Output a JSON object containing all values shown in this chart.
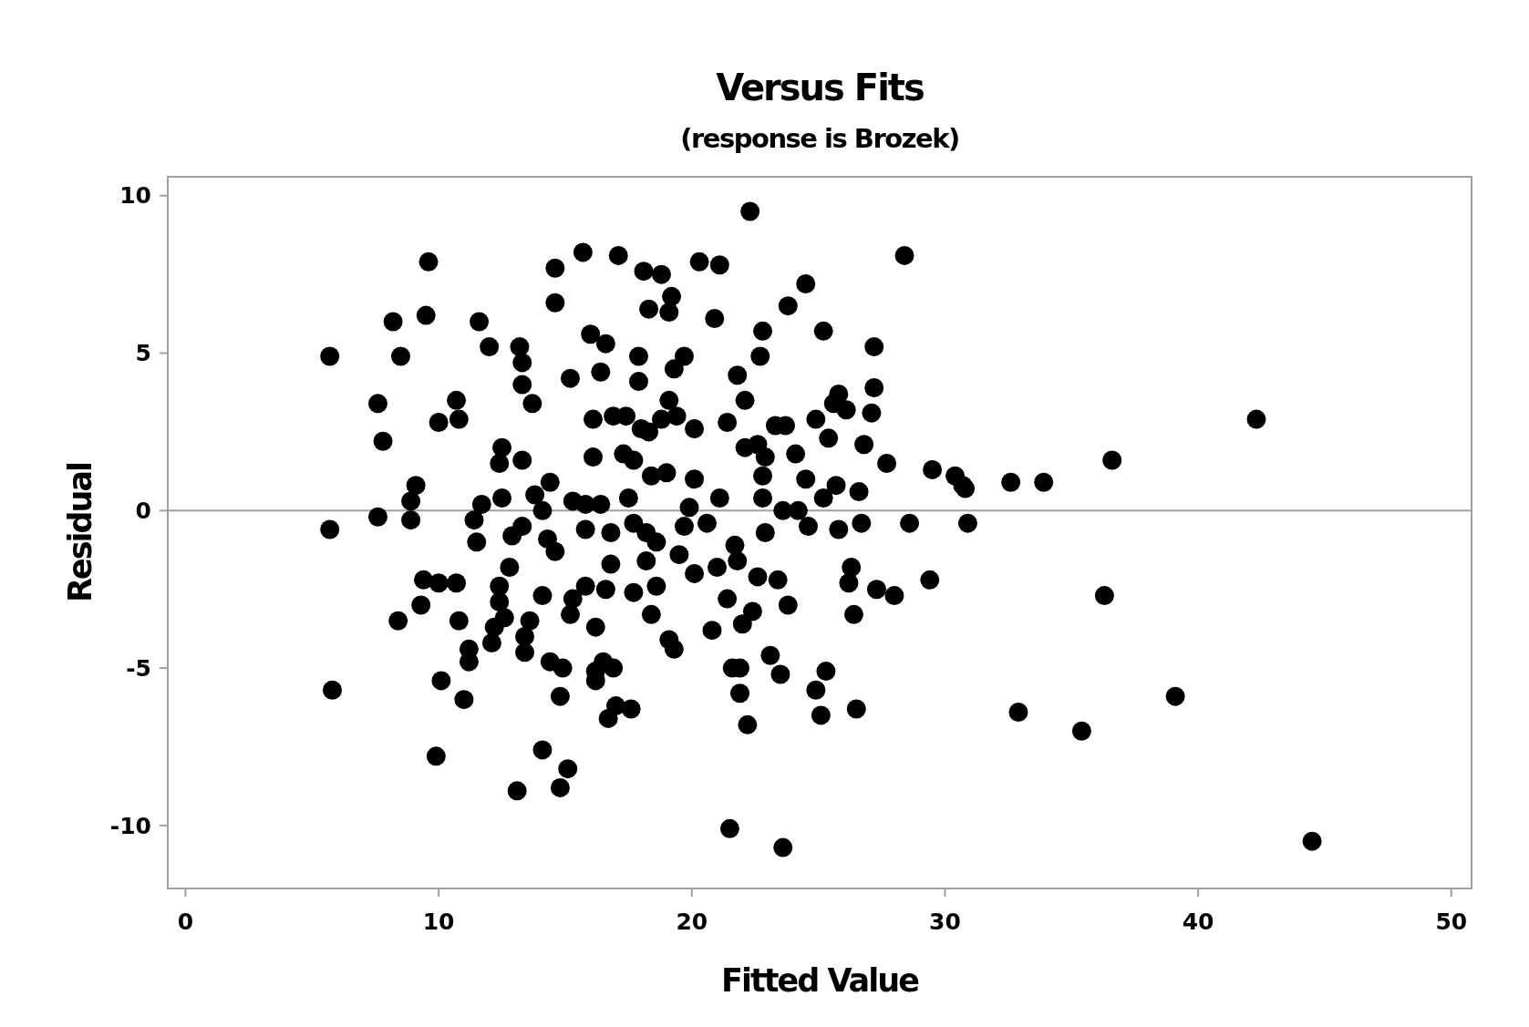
{
  "chart_data": {
    "type": "scatter",
    "title": "Versus Fits",
    "subtitle": "(response is Brozek)",
    "xlabel": "Fitted Value",
    "ylabel": "Residual",
    "xlim": [
      -0.7,
      50.8
    ],
    "ylim": [
      -12,
      10.6
    ],
    "xticks": [
      0,
      10,
      20,
      30,
      40,
      50
    ],
    "yticks": [
      -10,
      -5,
      0,
      5,
      10
    ],
    "grid": false,
    "marker": "circle",
    "ref_lines": [
      {
        "axis": "y",
        "value": 0,
        "color": "#a0a0a0"
      }
    ],
    "series": [
      {
        "color": "#000000",
        "x": [
          5.7,
          5.7,
          5.8,
          7.6,
          7.6,
          7.8,
          8.2,
          8.5,
          8.4,
          8.9,
          8.9,
          9.1,
          9.3,
          9.6,
          9.5,
          9.4,
          9.9,
          10.0,
          10.1,
          10.0,
          10.7,
          10.8,
          10.7,
          10.8,
          11.0,
          11.2,
          11.2,
          11.4,
          11.5,
          11.6,
          11.7,
          12.0,
          12.1,
          12.2,
          12.4,
          12.5,
          12.4,
          12.5,
          12.4,
          12.6,
          12.8,
          12.9,
          13.1,
          13.2,
          13.3,
          13.3,
          13.3,
          13.3,
          13.4,
          13.4,
          13.6,
          13.7,
          13.8,
          14.1,
          14.1,
          14.1,
          14.3,
          14.4,
          14.4,
          14.6,
          14.6,
          14.6,
          14.8,
          14.8,
          14.9,
          15.1,
          15.2,
          15.3,
          15.3,
          15.2,
          15.7,
          15.8,
          15.8,
          15.8,
          16.0,
          16.1,
          16.1,
          16.2,
          16.2,
          16.2,
          16.4,
          16.4,
          16.5,
          16.6,
          16.6,
          16.7,
          16.8,
          16.8,
          16.9,
          16.9,
          17.0,
          17.1,
          17.3,
          17.4,
          17.5,
          17.6,
          17.7,
          17.7,
          17.7,
          17.9,
          17.9,
          18.0,
          18.1,
          18.3,
          18.2,
          18.2,
          18.3,
          18.4,
          18.4,
          18.6,
          18.6,
          18.8,
          18.8,
          19.0,
          19.1,
          19.2,
          19.1,
          19.1,
          19.3,
          19.3,
          19.4,
          19.5,
          19.7,
          19.7,
          19.9,
          20.1,
          20.1,
          20.1,
          20.3,
          20.6,
          20.8,
          20.9,
          21.0,
          21.1,
          21.1,
          21.4,
          21.4,
          21.5,
          21.6,
          21.7,
          21.8,
          21.8,
          21.9,
          21.9,
          22.0,
          22.1,
          22.1,
          22.2,
          22.3,
          22.4,
          22.6,
          22.7,
          22.8,
          22.8,
          22.9,
          22.9,
          22.8,
          22.6,
          23.1,
          23.3,
          23.4,
          23.5,
          23.6,
          23.7,
          23.8,
          23.8,
          23.6,
          24.1,
          24.2,
          24.5,
          24.5,
          24.6,
          24.9,
          24.9,
          25.1,
          25.2,
          25.3,
          25.2,
          25.4,
          25.6,
          25.7,
          25.8,
          25.8,
          26.1,
          26.3,
          26.2,
          26.4,
          26.5,
          26.6,
          26.7,
          26.8,
          27.1,
          27.2,
          27.2,
          27.3,
          27.7,
          28.0,
          28.4,
          28.6,
          29.4,
          29.5,
          30.4,
          30.7,
          30.8,
          30.9,
          32.6,
          32.9,
          33.9,
          35.4,
          36.3,
          36.6,
          39.1,
          42.3,
          44.5
        ],
        "values": [
          4.9,
          -0.6,
          -5.7,
          -0.2,
          3.4,
          2.2,
          6.0,
          4.9,
          -3.5,
          0.3,
          -0.3,
          0.8,
          -3.0,
          7.9,
          6.2,
          -2.2,
          -7.8,
          2.8,
          -5.4,
          -2.3,
          3.5,
          2.9,
          -2.3,
          -3.5,
          -6.0,
          -4.8,
          -4.4,
          -0.3,
          -1.0,
          6.0,
          0.2,
          5.2,
          -4.2,
          -3.7,
          -2.4,
          2.0,
          1.5,
          0.4,
          -2.9,
          -3.4,
          -1.8,
          -0.8,
          -8.9,
          5.2,
          4.7,
          4.0,
          1.6,
          -0.5,
          -4.0,
          -4.5,
          -3.5,
          3.4,
          0.5,
          0.0,
          -7.6,
          -2.7,
          -0.9,
          0.9,
          -4.8,
          -1.3,
          7.7,
          6.6,
          -5.9,
          -8.8,
          -5.0,
          -8.2,
          4.2,
          0.3,
          -2.8,
          -3.3,
          8.2,
          0.2,
          -2.4,
          -0.6,
          5.6,
          1.7,
          2.9,
          -5.1,
          -5.4,
          -3.7,
          4.4,
          0.2,
          -4.8,
          5.3,
          -2.5,
          -6.6,
          -0.7,
          -1.7,
          3.0,
          -5.0,
          -6.2,
          8.1,
          1.8,
          3.0,
          0.4,
          -6.3,
          1.6,
          -2.6,
          -0.4,
          4.9,
          4.1,
          2.6,
          7.6,
          6.4,
          -0.7,
          -1.6,
          2.5,
          1.1,
          -3.3,
          -1.0,
          -2.4,
          7.5,
          2.9,
          1.2,
          6.3,
          6.8,
          3.5,
          -4.1,
          -4.4,
          4.5,
          3.0,
          -1.4,
          4.9,
          -0.5,
          0.1,
          2.6,
          1.0,
          -2.0,
          7.9,
          -0.4,
          -3.8,
          6.1,
          -1.8,
          7.8,
          0.4,
          2.8,
          -2.8,
          -10.1,
          -5.0,
          -1.1,
          -1.6,
          4.3,
          -5.0,
          -5.8,
          -3.6,
          3.5,
          2.0,
          -6.8,
          9.5,
          -3.2,
          2.1,
          4.9,
          5.7,
          1.1,
          1.7,
          -0.7,
          0.4,
          -2.1,
          -4.6,
          2.7,
          -2.2,
          -5.2,
          -10.7,
          2.7,
          6.5,
          -3.0,
          0.0,
          1.8,
          0.0,
          7.2,
          1.0,
          -0.5,
          2.9,
          -5.7,
          -6.5,
          5.7,
          -5.1,
          0.4,
          2.3,
          3.4,
          0.8,
          -0.6,
          3.7,
          3.2,
          -1.8,
          -2.3,
          -3.3,
          -6.3,
          0.6,
          -0.4,
          2.1,
          3.1,
          3.9,
          5.2,
          -2.5,
          1.5,
          -2.7,
          8.1,
          -0.4,
          -2.2,
          1.3,
          1.1,
          0.8,
          0.7,
          -0.4,
          0.9,
          -6.4,
          0.9,
          -7.0,
          -2.7,
          1.6,
          -5.9,
          2.9,
          -10.5
        ]
      }
    ]
  }
}
